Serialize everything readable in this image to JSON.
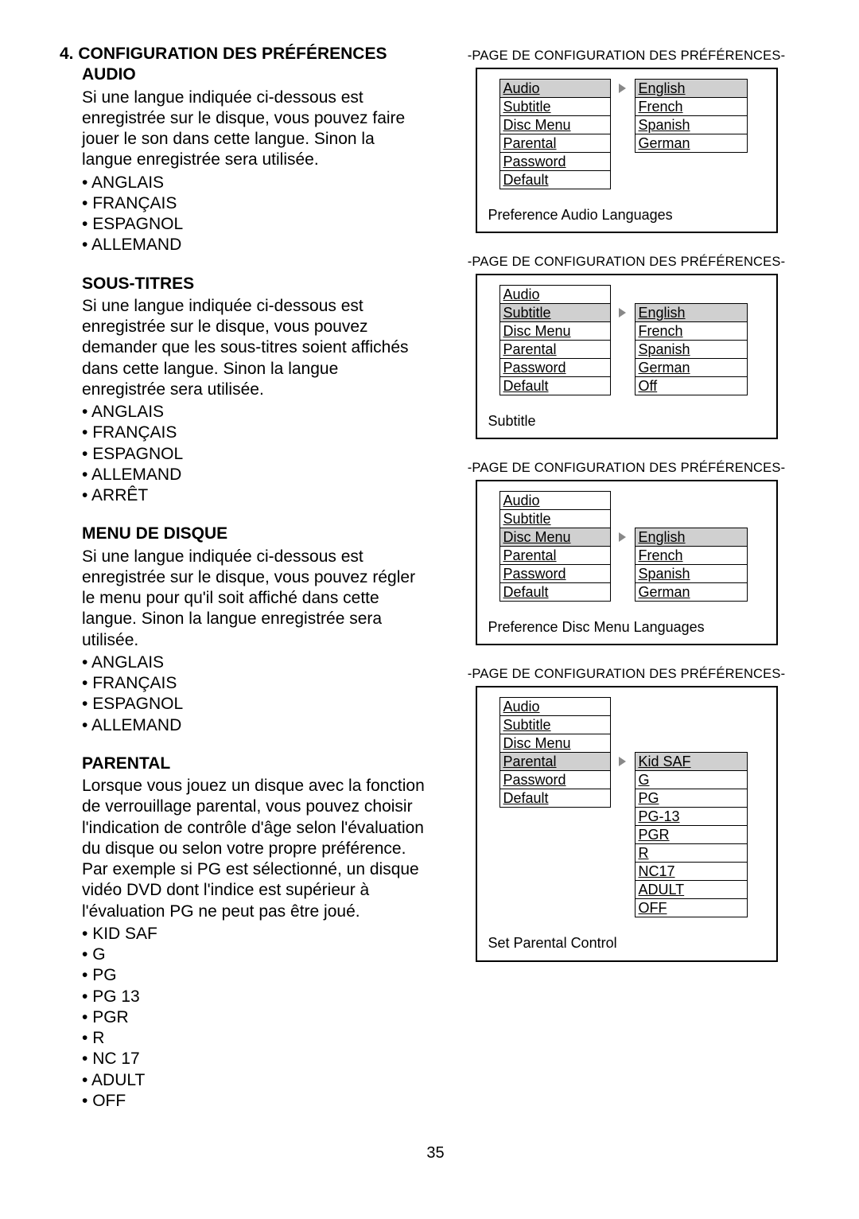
{
  "pageNumber": "35",
  "left": {
    "s1": {
      "heading": "4. CONFIGURATION DES PRÉFÉRENCES",
      "sub": "AUDIO",
      "para": "Si une langue indiquée ci-dessous est enregistrée sur le disque, vous pouvez faire jouer le son dans cette langue.  Sinon la langue enregistrée sera utilisée.",
      "items": [
        "ANGLAIS",
        "FRANÇAIS",
        "ESPAGNOL",
        "ALLEMAND"
      ]
    },
    "s2": {
      "heading": "SOUS-TITRES",
      "para": "Si une langue indiquée ci-dessous est enregistrée sur le disque, vous pouvez demander que les sous-titres soient affichés dans cette langue. Sinon la langue enregistrée sera utilisée.",
      "items": [
        "ANGLAIS",
        "FRANÇAIS",
        "ESPAGNOL",
        "ALLEMAND",
        "ARRÊT"
      ]
    },
    "s3": {
      "heading": "MENU DE DISQUE",
      "para": "Si une langue indiquée ci-dessous est enregistrée sur le disque, vous pouvez régler le menu pour qu'il soit affiché dans cette langue. Sinon la langue enregistrée sera utilisée.",
      "items": [
        "ANGLAIS",
        "FRANÇAIS",
        "ESPAGNOL",
        "ALLEMAND"
      ]
    },
    "s4": {
      "heading": "PARENTAL",
      "para": "Lorsque vous jouez un disque avec la fonction de verrouillage parental, vous pouvez choisir l'indication de contrôle d'âge selon l'évaluation du disque ou selon votre propre préférence.  Par exemple si PG est sélectionné, un disque vidéo DVD dont l'indice est supérieur à l'évaluation PG ne peut pas être joué.",
      "items": [
        "KID SAF",
        "G",
        "PG",
        "PG 13",
        "PGR",
        "R",
        "NC 17",
        "ADULT",
        "OFF"
      ]
    }
  },
  "right": {
    "header": "-PAGE DE CONFIGURATION DES PRÉFÉRENCES-",
    "box1": {
      "left": [
        "Audio",
        "Subtitle",
        "Disc Menu",
        "Parental",
        "Password",
        "Default"
      ],
      "leftSel": 0,
      "arrowRow": 0,
      "right": [
        "English",
        "French",
        "Spanish",
        "German"
      ],
      "rightSel": 0,
      "footer": "Preference Audio Languages"
    },
    "box2": {
      "left": [
        "Audio",
        "Subtitle",
        "Disc Menu",
        "Parental",
        "Password",
        "Default"
      ],
      "leftSel": 1,
      "arrowRow": 1,
      "right": [
        "",
        "English",
        "French",
        "Spanish",
        "German",
        "Off"
      ],
      "rightSel": 1,
      "footer": "Subtitle"
    },
    "box3": {
      "left": [
        "Audio",
        "Subtitle",
        "Disc Menu",
        "Parental",
        "Password",
        "Default"
      ],
      "leftSel": 2,
      "arrowRow": 2,
      "right": [
        "",
        "",
        "English",
        "French",
        "Spanish",
        "German"
      ],
      "rightSel": 2,
      "footer": "Preference Disc Menu Languages"
    },
    "box4": {
      "left": [
        "Audio",
        "Subtitle",
        "Disc Menu",
        "Parental",
        "Password",
        "Default"
      ],
      "leftSel": 3,
      "arrowRow": 3,
      "right": [
        "",
        "",
        "",
        "Kid SAF",
        "G",
        "PG",
        "PG-13",
        "PGR",
        "R",
        "NC17",
        "ADULT",
        "OFF"
      ],
      "rightSel": 3,
      "footer": "Set Parental Control"
    }
  }
}
